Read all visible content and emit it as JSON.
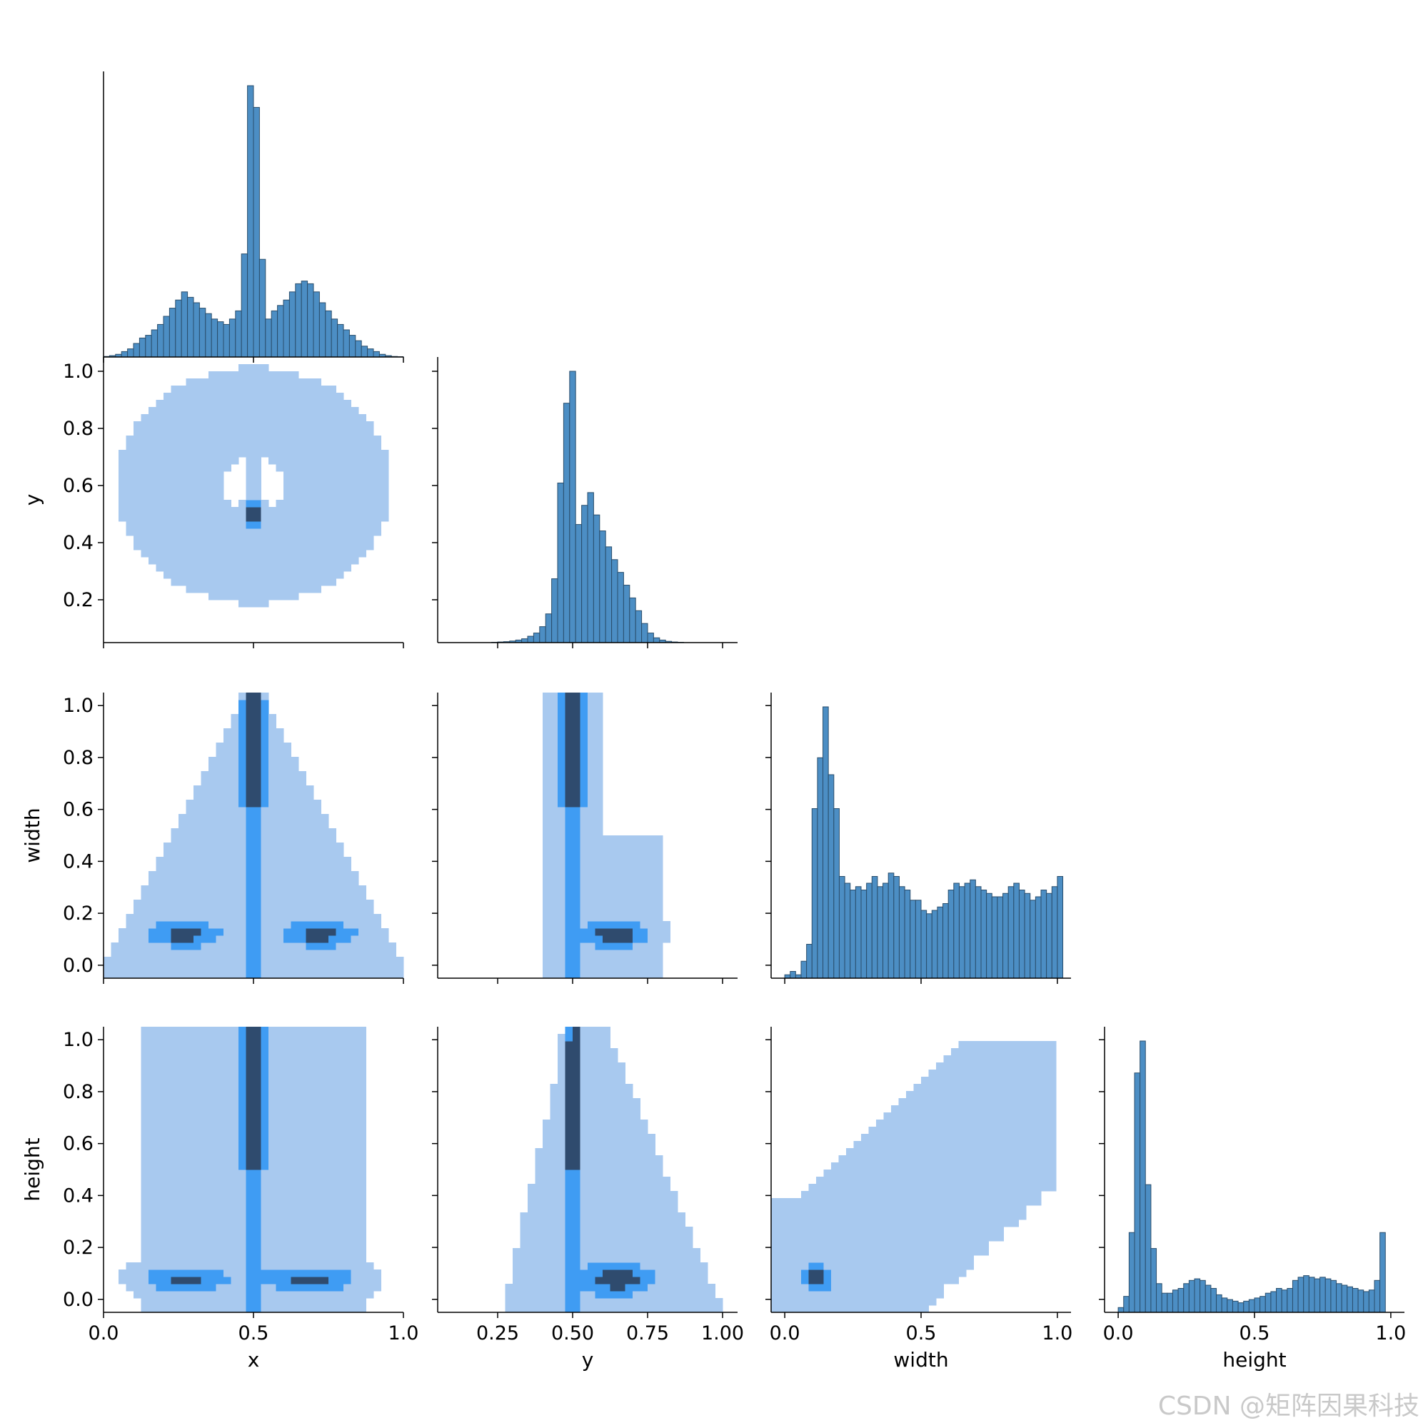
{
  "watermark": "CSDN @矩阵因果科技",
  "chart_data": {
    "type": "pairplot",
    "variables": [
      "x",
      "y",
      "width",
      "height"
    ],
    "colors": {
      "bar_fill": "#4c8ec4",
      "bar_edge": "#2a4e6c",
      "hist2d_light": "#a8c9ef",
      "hist2d_mid": "#3f9cf3",
      "hist2d_dark": "#2f4b6e"
    },
    "axes": {
      "x": {
        "range": [
          0.0,
          1.0
        ],
        "ticks": [
          0.0,
          0.5,
          1.0
        ],
        "tick_labels": [
          "0.0",
          "0.5",
          "1.0"
        ]
      },
      "y": {
        "range": [
          0.05,
          1.05
        ],
        "ticks": [
          0.25,
          0.5,
          0.75,
          1.0
        ],
        "tick_labels": [
          "0.25",
          "0.50",
          "0.75",
          "1.00"
        ],
        "row_ticks": [
          0.2,
          0.4,
          0.6,
          0.8,
          1.0
        ],
        "row_tick_labels": [
          "0.2",
          "0.4",
          "0.6",
          "0.8",
          "1.0"
        ]
      },
      "width": {
        "range": [
          -0.05,
          1.05
        ],
        "ticks": [
          0.0,
          0.5,
          1.0
        ],
        "tick_labels": [
          "0.0",
          "0.5",
          "1.0"
        ],
        "row_ticks": [
          0.0,
          0.2,
          0.4,
          0.6,
          0.8,
          1.0
        ],
        "row_tick_labels": [
          "0.0",
          "0.2",
          "0.4",
          "0.6",
          "0.8",
          "1.0"
        ]
      },
      "height": {
        "range": [
          -0.05,
          1.05
        ],
        "ticks": [
          0.0,
          0.5,
          1.0
        ],
        "tick_labels": [
          "0.0",
          "0.5",
          "1.0"
        ],
        "row_ticks": [
          0.0,
          0.2,
          0.4,
          0.6,
          0.8,
          1.0
        ],
        "row_tick_labels": [
          "0.0",
          "0.2",
          "0.4",
          "0.6",
          "0.8",
          "1.0"
        ]
      }
    },
    "diag_hist": {
      "x": {
        "bin_start": 0.0,
        "bin_width": 0.02,
        "counts": [
          0.2,
          0.5,
          1,
          2,
          3,
          5,
          7,
          8,
          10,
          12,
          15,
          18,
          21,
          24,
          22,
          20,
          18,
          16,
          14,
          13,
          12,
          14,
          17,
          38,
          100,
          92,
          36,
          14,
          17,
          19,
          21,
          24,
          27,
          28,
          27,
          24,
          20,
          17,
          14,
          12,
          10,
          8,
          6,
          4,
          3,
          2,
          1,
          0.5,
          0.2,
          0.1
        ]
      },
      "y": {
        "bin_start": 0.05,
        "bin_width": 0.02,
        "counts": [
          0,
          0,
          0,
          0,
          0,
          0,
          0,
          0,
          0,
          0.1,
          0.2,
          0.3,
          0.5,
          0.8,
          1.2,
          2,
          3,
          5,
          9,
          20,
          50,
          75,
          85,
          37,
          43,
          47,
          40,
          35,
          30,
          26,
          22,
          18,
          14,
          10,
          6,
          3,
          1.5,
          0.8,
          0.4,
          0.2,
          0.1,
          0,
          0,
          0,
          0,
          0,
          0,
          0,
          0,
          0
        ]
      },
      "width": {
        "bin_start": 0.0,
        "bin_width": 0.02,
        "counts": [
          1,
          2,
          1,
          5,
          10,
          50,
          65,
          80,
          60,
          50,
          30,
          28,
          26,
          27,
          26,
          28,
          30,
          27,
          28,
          31,
          30,
          27,
          26,
          23,
          23,
          20,
          19,
          20,
          21,
          22,
          26,
          28,
          27,
          28,
          29,
          27,
          26,
          25,
          24,
          24,
          25,
          27,
          28,
          26,
          25,
          23,
          24,
          26,
          25,
          27,
          30
        ]
      },
      "height": {
        "bin_start": 0.0,
        "bin_width": 0.02,
        "counts": [
          3,
          10,
          50,
          150,
          170,
          80,
          40,
          18,
          12,
          12,
          14,
          15,
          18,
          20,
          21,
          20,
          17,
          15,
          11,
          9,
          8,
          7,
          6,
          7,
          8,
          9,
          10,
          12,
          13,
          15,
          14,
          15,
          20,
          22,
          23,
          22,
          21,
          22,
          21,
          20,
          18,
          17,
          16,
          15,
          14,
          13,
          14,
          20,
          50
        ]
      }
    }
  }
}
